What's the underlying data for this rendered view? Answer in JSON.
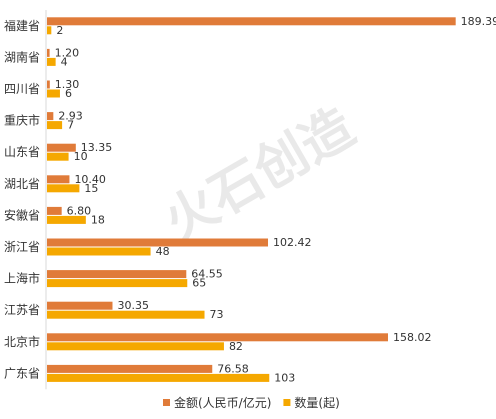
{
  "chart_data": {
    "type": "bar",
    "orientation": "horizontal",
    "categories": [
      "福建省",
      "湖南省",
      "四川省",
      "重庆市",
      "山东省",
      "湖北省",
      "安徽省",
      "浙江省",
      "上海市",
      "江苏省",
      "北京市",
      "广东省"
    ],
    "series": [
      {
        "name": "金额(人民币/亿元)",
        "color": "#E07B39",
        "values": [
          189.39,
          1.2,
          1.3,
          2.93,
          13.35,
          10.4,
          6.8,
          102.42,
          64.55,
          30.35,
          158.02,
          76.58
        ],
        "labels": [
          "189.39",
          "1.20",
          "1.30",
          "2.93",
          "13.35",
          "10.40",
          "6.80",
          "102.42",
          "64.55",
          "30.35",
          "158.02",
          "76.58"
        ]
      },
      {
        "name": "数量(起)",
        "color": "#F5A800",
        "values": [
          2,
          4,
          6,
          7,
          10,
          15,
          18,
          48,
          65,
          73,
          82,
          103
        ],
        "labels": [
          "2",
          "4",
          "6",
          "7",
          "10",
          "15",
          "18",
          "48",
          "65",
          "73",
          "82",
          "103"
        ]
      }
    ],
    "xlim": [
      0,
      190
    ],
    "grid": false,
    "legend_position": "bottom-right",
    "axis_line_color": "#d9d9d9"
  },
  "watermark": {
    "text": "火石创造"
  }
}
